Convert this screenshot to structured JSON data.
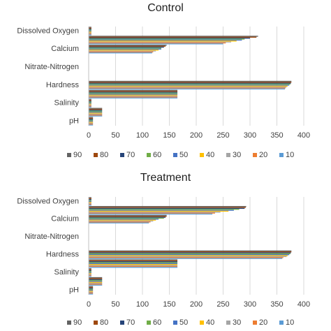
{
  "chart_data": [
    {
      "type": "hbar",
      "title": "Control",
      "categories": [
        "Dissolved Oxygen",
        null,
        "Calcium",
        null,
        "Nitrate-Nitrogen",
        null,
        "Hardness",
        null,
        "Salinity",
        null,
        "pH"
      ],
      "xlim": [
        0,
        400
      ],
      "xticks": [
        0,
        50,
        100,
        150,
        200,
        250,
        300,
        350,
        400
      ],
      "grid": true,
      "series": [
        {
          "name": "90",
          "color": "#636363",
          "values": [
            5,
            315,
            145,
            0,
            0,
            0,
            377,
            165,
            5,
            25,
            8
          ]
        },
        {
          "name": "80",
          "color": "#9e480e",
          "values": [
            5,
            312,
            143,
            0,
            0,
            0,
            377,
            165,
            5,
            25,
            8
          ]
        },
        {
          "name": "70",
          "color": "#264478",
          "values": [
            5,
            300,
            140,
            0,
            0,
            0,
            376,
            165,
            5,
            25,
            8
          ]
        },
        {
          "name": "60",
          "color": "#70ad47",
          "values": [
            5,
            290,
            135,
            0,
            0,
            0,
            375,
            165,
            5,
            25,
            8
          ]
        },
        {
          "name": "50",
          "color": "#4472c4",
          "values": [
            5,
            285,
            135,
            0,
            0,
            0,
            373,
            165,
            5,
            25,
            8
          ]
        },
        {
          "name": "40",
          "color": "#ffc000",
          "values": [
            5,
            275,
            130,
            0,
            0,
            0,
            370,
            165,
            5,
            25,
            8
          ]
        },
        {
          "name": "30",
          "color": "#a5a5a5",
          "values": [
            5,
            265,
            125,
            0,
            0,
            0,
            368,
            165,
            5,
            25,
            8
          ]
        },
        {
          "name": "20",
          "color": "#ed7d31",
          "values": [
            5,
            255,
            120,
            0,
            0,
            0,
            366,
            165,
            5,
            25,
            8
          ]
        },
        {
          "name": "10",
          "color": "#5b9bd5",
          "values": [
            5,
            250,
            118,
            0,
            0,
            0,
            365,
            165,
            5,
            25,
            8
          ]
        }
      ]
    },
    {
      "type": "hbar",
      "title": "Treatment",
      "categories": [
        "Dissolved Oxygen",
        null,
        "Calcium",
        null,
        "Nitrate-Nitrogen",
        null,
        "Hardness",
        null,
        "Salinity",
        null,
        "pH"
      ],
      "xlim": [
        0,
        400
      ],
      "xticks": [
        0,
        50,
        100,
        150,
        200,
        250,
        300,
        350,
        400
      ],
      "grid": true,
      "series": [
        {
          "name": "90",
          "color": "#636363",
          "values": [
            5,
            293,
            145,
            0,
            0,
            0,
            377,
            165,
            5,
            25,
            8
          ]
        },
        {
          "name": "80",
          "color": "#9e480e",
          "values": [
            5,
            292,
            145,
            0,
            0,
            0,
            377,
            165,
            5,
            25,
            8
          ]
        },
        {
          "name": "70",
          "color": "#264478",
          "values": [
            5,
            290,
            143,
            0,
            0,
            0,
            376,
            165,
            5,
            25,
            8
          ]
        },
        {
          "name": "60",
          "color": "#70ad47",
          "values": [
            5,
            280,
            140,
            0,
            0,
            0,
            375,
            165,
            5,
            25,
            8
          ]
        },
        {
          "name": "50",
          "color": "#4472c4",
          "values": [
            5,
            270,
            130,
            0,
            0,
            0,
            373,
            165,
            5,
            25,
            8
          ]
        },
        {
          "name": "40",
          "color": "#ffc000",
          "values": [
            5,
            260,
            125,
            0,
            0,
            0,
            370,
            165,
            5,
            25,
            8
          ]
        },
        {
          "name": "30",
          "color": "#a5a5a5",
          "values": [
            5,
            245,
            120,
            0,
            0,
            0,
            368,
            165,
            5,
            25,
            8
          ]
        },
        {
          "name": "20",
          "color": "#ed7d31",
          "values": [
            5,
            235,
            115,
            0,
            0,
            0,
            362,
            165,
            5,
            25,
            8
          ]
        },
        {
          "name": "10",
          "color": "#5b9bd5",
          "values": [
            5,
            230,
            112,
            0,
            0,
            0,
            360,
            165,
            5,
            25,
            8
          ]
        }
      ]
    }
  ]
}
